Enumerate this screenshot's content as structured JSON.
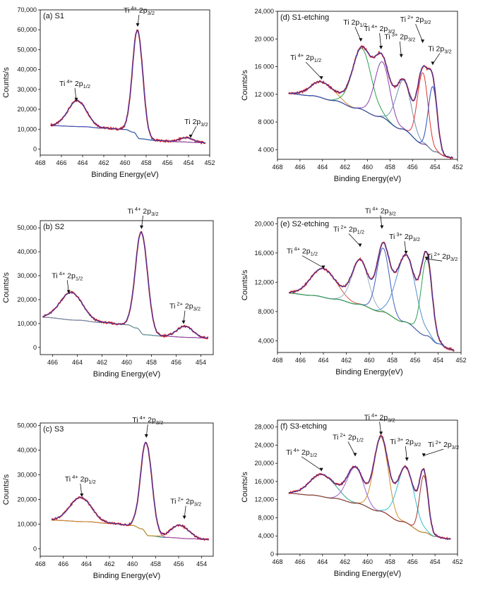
{
  "chart_data": [
    {
      "type": "line",
      "panel_label": "(a) S1",
      "xlabel": "Binding Energy(eV)",
      "ylabel": "Counts/s",
      "x_reversed": true,
      "xlim": [
        468,
        452
      ],
      "ylim": [
        -3000,
        70000
      ],
      "xticks": [
        "468",
        "466",
        "464",
        "462",
        "460",
        "458",
        "456",
        "454",
        "452"
      ],
      "yticks": [
        "0",
        "10,000",
        "20,000",
        "30,000",
        "40,000",
        "50,000",
        "60,000",
        "70,000"
      ],
      "ytick_values": [
        0,
        10000,
        20000,
        30000,
        40000,
        50000,
        60000,
        70000
      ],
      "x_range": [
        467,
        452.4
      ],
      "background": [
        [
          467,
          11800
        ],
        [
          464,
          11300
        ],
        [
          462,
          10500
        ],
        [
          460,
          9900
        ],
        [
          459.2,
          8500
        ],
        [
          458.6,
          5200
        ],
        [
          457,
          4300
        ],
        [
          455,
          3700
        ],
        [
          453,
          3300
        ],
        [
          452.4,
          3100
        ]
      ],
      "fit_peaks": [
        {
          "name": "Ti 4+ 2p1/2",
          "center": 464.5,
          "height": 13000,
          "fwhm": 2.1,
          "color": "#1e8f8f"
        },
        {
          "name": "Ti 4+ 2p3/2",
          "center": 458.8,
          "height": 53500,
          "fwhm": 1.15,
          "color": "#b040c0"
        },
        {
          "name": "Ti 2p3/2",
          "center": 454.2,
          "height": 2200,
          "fwhm": 1.5,
          "color": "#3355cc"
        }
      ],
      "peak_labels": [
        {
          "text": "Ti",
          "sup": "4+",
          "orb": "2p",
          "sub": "1/2",
          "x": 464.6,
          "y": 24000
        },
        {
          "text": "Ti",
          "sup": "4+",
          "orb": "2p",
          "sub": "3/2",
          "x": 458.8,
          "y": 61500
        },
        {
          "text": "Ti",
          "sup": "",
          "orb": "2p",
          "sub": "3/2",
          "x": 453.8,
          "y": 5500
        }
      ]
    },
    {
      "type": "line",
      "panel_label": "(d) S1-etching",
      "xlabel": "Binding Energy(eV)",
      "ylabel": "Counts/s",
      "x_reversed": true,
      "xlim": [
        468,
        452
      ],
      "ylim": [
        2600,
        24000
      ],
      "xticks": [
        "468",
        "466",
        "464",
        "462",
        "460",
        "458",
        "456",
        "454",
        "452"
      ],
      "yticks": [
        "4 000",
        "8 000",
        "12 000",
        "16 000",
        "20 000",
        "24,000"
      ],
      "ytick_values": [
        4000,
        8000,
        12000,
        16000,
        20000,
        24000
      ],
      "x_range": [
        467,
        452.4
      ],
      "background": [
        [
          467,
          12100
        ],
        [
          465,
          11800
        ],
        [
          463,
          11100
        ],
        [
          461,
          10000
        ],
        [
          459,
          8800
        ],
        [
          457,
          7000
        ],
        [
          455,
          4800
        ],
        [
          454,
          3700
        ],
        [
          453,
          3000
        ],
        [
          452.4,
          2800
        ]
      ],
      "fit_peaks": [
        {
          "name": "Ti 4+ 2p1/2",
          "center": 464.0,
          "height": 2300,
          "fwhm": 2.4,
          "color": "#d08a30"
        },
        {
          "name": "Ti 2p1/2",
          "center": 460.5,
          "height": 8800,
          "fwhm": 2.0,
          "color": "#2aa050"
        },
        {
          "name": "Ti 4+ 2p3/2",
          "center": 458.7,
          "height": 8000,
          "fwhm": 1.6,
          "color": "#8b3fb0"
        },
        {
          "name": "Ti 3+ 2p3/2",
          "center": 456.8,
          "height": 7100,
          "fwhm": 1.6,
          "color": "#6f8fb0"
        },
        {
          "name": "Ti 2+ 2p3/2",
          "center": 455.1,
          "height": 10300,
          "fwhm": 1.1,
          "color": "#e03030"
        },
        {
          "name": "Ti 2p3/2",
          "center": 454.2,
          "height": 9300,
          "fwhm": 0.9,
          "color": "#2050c0"
        }
      ],
      "peak_labels": [
        {
          "text": "Ti",
          "sup": "4+",
          "orb": "2p",
          "sub": "1/2",
          "x": 464.1,
          "y": 14100
        },
        {
          "text": "Ti",
          "sup": "",
          "orb": "2p",
          "sub": "1/2",
          "x": 460.6,
          "y": 19600
        },
        {
          "text": "Ti",
          "sup": "4+",
          "orb": "2p",
          "sub": "3/2",
          "x": 458.8,
          "y": 18500
        },
        {
          "text": "Ti",
          "sup": "3+",
          "orb": "2p",
          "sub": "3/2",
          "x": 457.0,
          "y": 17300
        },
        {
          "text": "Ti",
          "sup": "2+",
          "orb": "2p",
          "sub": "3/2",
          "x": 455.1,
          "y": 19400
        },
        {
          "text": "Ti",
          "sup": "",
          "orb": "2p",
          "sub": "3/2",
          "x": 454.2,
          "y": 16200
        }
      ]
    },
    {
      "type": "line",
      "panel_label": "(b) S2",
      "xlabel": "Binding Energy(eV)",
      "ylabel": "Counts/s",
      "x_reversed": true,
      "xlim": [
        467,
        453
      ],
      "ylim": [
        -3000,
        53000
      ],
      "xticks": [
        "466",
        "464",
        "462",
        "460",
        "458",
        "456",
        "454"
      ],
      "yticks": [
        "0",
        "10,000",
        "20,000",
        "30,000",
        "40,000",
        "50,000"
      ],
      "ytick_values": [
        0,
        10000,
        20000,
        30000,
        40000,
        50000
      ],
      "x_range": [
        466.8,
        453.4
      ],
      "background": [
        [
          466.8,
          12600
        ],
        [
          464,
          11400
        ],
        [
          462,
          10400
        ],
        [
          460,
          9500
        ],
        [
          459.2,
          8100
        ],
        [
          458.6,
          5300
        ],
        [
          457,
          4700
        ],
        [
          455,
          4200
        ],
        [
          453.4,
          3900
        ]
      ],
      "fit_peaks": [
        {
          "name": "Ti 4+ 2p1/2",
          "center": 464.5,
          "height": 11500,
          "fwhm": 2.1,
          "color": "#1e8f8f"
        },
        {
          "name": "Ti 4+ 2p3/2",
          "center": 458.8,
          "height": 42000,
          "fwhm": 1.15,
          "color": "#b040c0"
        },
        {
          "name": "Ti 2+ 2p3/2",
          "center": 455.3,
          "height": 4600,
          "fwhm": 1.5,
          "color": "#6f8fb0"
        }
      ],
      "peak_labels": [
        {
          "text": "Ti",
          "sup": "4+",
          "orb": "2p",
          "sub": "1/2",
          "x": 464.7,
          "y": 22500
        },
        {
          "text": "Ti",
          "sup": "4+",
          "orb": "2p",
          "sub": "3/2",
          "x": 458.8,
          "y": 49500
        },
        {
          "text": "Ti",
          "sup": "2+",
          "orb": "2p",
          "sub": "3/2",
          "x": 455.4,
          "y": 9800
        }
      ]
    },
    {
      "type": "line",
      "panel_label": "(e) S2-etching",
      "xlabel": "Binding Energy(eV)",
      "ylabel": "Counts/s",
      "x_reversed": true,
      "xlim": [
        468,
        452
      ],
      "ylim": [
        2400,
        20800
      ],
      "xticks": [
        "468",
        "466",
        "464",
        "462",
        "460",
        "458",
        "456",
        "454",
        "452"
      ],
      "yticks": [
        "4,000",
        "8,000",
        "12,000",
        "16,000",
        "20,000"
      ],
      "ytick_values": [
        4000,
        8000,
        12000,
        16000,
        20000
      ],
      "x_range": [
        467,
        452.6
      ],
      "background": [
        [
          467,
          10500
        ],
        [
          465,
          10200
        ],
        [
          463,
          9700
        ],
        [
          461,
          9000
        ],
        [
          459,
          8000
        ],
        [
          457,
          6600
        ],
        [
          455,
          4700
        ],
        [
          454,
          3600
        ],
        [
          453,
          2900
        ],
        [
          452.6,
          2700
        ]
      ],
      "fit_peaks": [
        {
          "name": "Ti 4+ 2p1/2",
          "center": 464.0,
          "height": 3900,
          "fwhm": 2.6,
          "color": "#d85a40"
        },
        {
          "name": "Ti 2+ 2p1/2",
          "center": 460.8,
          "height": 6100,
          "fwhm": 1.7,
          "color": "#9ab0c0"
        },
        {
          "name": "Ti 4+ 2p3/2",
          "center": 458.8,
          "height": 8700,
          "fwhm": 1.3,
          "color": "#4060c0"
        },
        {
          "name": "Ti 3+ 2p3/2",
          "center": 456.8,
          "height": 9200,
          "fwhm": 2.0,
          "color": "#5090d0"
        },
        {
          "name": "Ti 2+ 2p3/2",
          "center": 455.0,
          "height": 10500,
          "fwhm": 1.1,
          "color": "#30a050"
        }
      ],
      "peak_labels": [
        {
          "text": "Ti",
          "sup": "4+",
          "orb": "2p",
          "sub": "1/2",
          "x": 464.0,
          "y": 13800
        },
        {
          "text": "Ti",
          "sup": "2+",
          "orb": "2p",
          "sub": "1/2",
          "x": 460.8,
          "y": 16800
        },
        {
          "text": "Ti",
          "sup": "4+",
          "orb": "2p",
          "sub": "3/2",
          "x": 458.9,
          "y": 19300
        },
        {
          "text": "Ti",
          "sup": "3+",
          "orb": "2p",
          "sub": "3/2",
          "x": 456.8,
          "y": 15800
        },
        {
          "text": "Ti",
          "sup": "2+",
          "orb": "2p",
          "sub": "3/2",
          "x": 455.0,
          "y": 15000
        }
      ]
    },
    {
      "type": "line",
      "panel_label": "(c) S3",
      "xlabel": "Binding Energy(eV)",
      "ylabel": "Counts/s",
      "x_reversed": true,
      "xlim": [
        468,
        453
      ],
      "ylim": [
        -3000,
        51000
      ],
      "xticks": [
        "468",
        "466",
        "464",
        "462",
        "460",
        "458",
        "456",
        "454"
      ],
      "yticks": [
        "0",
        "10,000",
        "20,000",
        "30,000",
        "40,000",
        "50,000"
      ],
      "ytick_values": [
        0,
        10000,
        20000,
        30000,
        40000,
        50000
      ],
      "x_range": [
        467,
        453.4
      ],
      "background": [
        [
          467,
          11600
        ],
        [
          464,
          11000
        ],
        [
          462,
          10300
        ],
        [
          460,
          9500
        ],
        [
          459.2,
          8100
        ],
        [
          458.6,
          5300
        ],
        [
          457,
          4600
        ],
        [
          455,
          4100
        ],
        [
          453.4,
          3700
        ]
      ],
      "fit_peaks": [
        {
          "name": "Ti 4+ 2p1/2",
          "center": 464.5,
          "height": 9800,
          "fwhm": 2.2,
          "color": "#2a9090"
        },
        {
          "name": "Ti 4+ 2p3/2",
          "center": 458.8,
          "height": 37000,
          "fwhm": 1.15,
          "color": "#c040c0"
        },
        {
          "name": "Ti 2+ 2p3/2",
          "center": 455.9,
          "height": 5300,
          "fwhm": 1.8,
          "color": "#d09030"
        }
      ],
      "peak_labels": [
        {
          "text": "Ti",
          "sup": "4+",
          "orb": "2p",
          "sub": "1/2",
          "x": 464.4,
          "y": 21000
        },
        {
          "text": "Ti",
          "sup": "4+",
          "orb": "2p",
          "sub": "3/2",
          "x": 458.8,
          "y": 45000
        },
        {
          "text": "Ti",
          "sup": "2+",
          "orb": "2p",
          "sub": "3/2",
          "x": 455.5,
          "y": 12000
        }
      ]
    },
    {
      "type": "line",
      "panel_label": "(f) S3-etching",
      "xlabel": "Binding Energy(eV)",
      "ylabel": "Counts/s",
      "x_reversed": true,
      "xlim": [
        468,
        452
      ],
      "ylim": [
        0,
        29500
      ],
      "xticks": [
        "468",
        "466",
        "464",
        "462",
        "460",
        "458",
        "456",
        "454",
        "452"
      ],
      "yticks": [
        "0",
        "4,000",
        "8,000",
        "12,000",
        "16,000",
        "20,000",
        "24,000",
        "28,000"
      ],
      "ytick_values": [
        0,
        4000,
        8000,
        12000,
        16000,
        20000,
        24000,
        28000
      ],
      "x_range": [
        467,
        452.6
      ],
      "background": [
        [
          467,
          13400
        ],
        [
          465,
          13000
        ],
        [
          463,
          12300
        ],
        [
          461,
          11200
        ],
        [
          459,
          9500
        ],
        [
          457,
          7200
        ],
        [
          455,
          4800
        ],
        [
          454,
          3900
        ],
        [
          453,
          3400
        ],
        [
          452.6,
          3300
        ]
      ],
      "fit_peaks": [
        {
          "name": "Ti 4+ 2p1/2",
          "center": 464.0,
          "height": 4900,
          "fwhm": 2.6,
          "color": "#30a090"
        },
        {
          "name": "Ti 2+ 2p1/2",
          "center": 461.1,
          "height": 7900,
          "fwhm": 1.7,
          "color": "#9a60d0"
        },
        {
          "name": "Ti 4+ 2p3/2",
          "center": 458.8,
          "height": 16300,
          "fwhm": 1.5,
          "color": "#d09030"
        },
        {
          "name": "Ti 3+ 2p3/2",
          "center": 456.6,
          "height": 12200,
          "fwhm": 1.8,
          "color": "#30c0d0"
        },
        {
          "name": "Ti 2+ 2p3/2",
          "center": 455.0,
          "height": 12500,
          "fwhm": 0.9,
          "color": "#a03030"
        }
      ],
      "peak_labels": [
        {
          "text": "Ti",
          "sup": "4+",
          "orb": "2p",
          "sub": "1/2",
          "x": 464.1,
          "y": 18200
        },
        {
          "text": "Ti",
          "sup": "2+",
          "orb": "2p",
          "sub": "1/2",
          "x": 461.1,
          "y": 21500
        },
        {
          "text": "Ti",
          "sup": "4+",
          "orb": "2p",
          "sub": "3/2",
          "x": 458.8,
          "y": 26200
        },
        {
          "text": "Ti",
          "sup": "3+",
          "orb": "2p",
          "sub": "3/2",
          "x": 456.5,
          "y": 20500
        },
        {
          "text": "Ti",
          "sup": "2+",
          "orb": "2p",
          "sub": "3/2",
          "x": 455.0,
          "y": 21400
        }
      ]
    }
  ],
  "colors": {
    "raw_data": "#e01818",
    "envelope": "#2040c0",
    "background": "#9aa020",
    "axis": "#111111"
  }
}
